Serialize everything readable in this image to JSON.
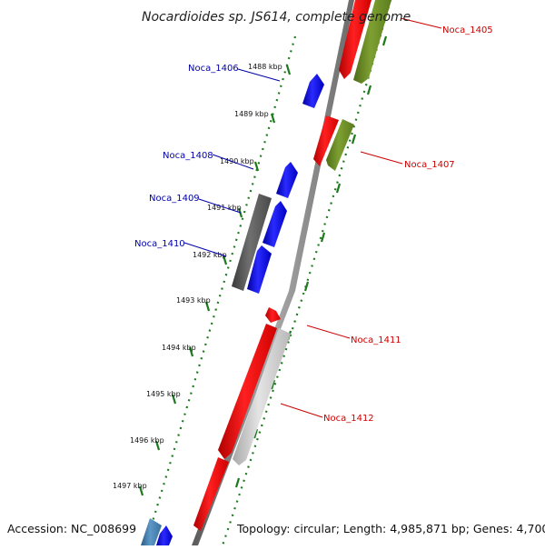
{
  "map": {
    "title": "Nocardioides sp. JS614, complete genome",
    "accession": "Accession: NC_008699",
    "topology": "Topology: circular; Length: 4,985,871 bp; Genes: 4,700",
    "ticks": [
      "1488 kbp",
      "1489 kbp",
      "1490 kbp",
      "1491 kbp",
      "1492 kbp",
      "1493 kbp",
      "1494 kbp",
      "1495 kbp",
      "1496 kbp",
      "1497 kbp"
    ],
    "genes_forward": [
      "Noca_1405",
      "Noca_1407",
      "Noca_1411",
      "Noca_1412"
    ],
    "genes_reverse": [
      "Noca_1406",
      "Noca_1408",
      "Noca_1409",
      "Noca_1410"
    ],
    "colors": {
      "forward_label": "#cc0000",
      "reverse_label": "#0000aa",
      "cds_red": "#ff0000",
      "cds_blue": "#0000ee",
      "cds_olive": "#6b8e23",
      "cds_gray_light": "#c8c8c8",
      "cds_gray_dark": "#555555",
      "cds_steel": "#4682b4",
      "backbone": "#7a7a7a",
      "ruler": "#1e7a1e"
    }
  }
}
